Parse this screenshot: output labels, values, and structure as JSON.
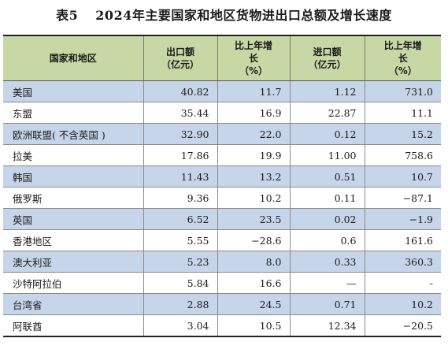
{
  "title": {
    "table_number": "表5",
    "text": "2024年主要国家和地区货物进出口总额及增长速度"
  },
  "table": {
    "headers": {
      "region": "国家和地区",
      "export_line1": "出口额",
      "export_line2": "（亿元）",
      "export_growth_line1": "比上年增",
      "export_growth_line2": "长",
      "export_growth_line3": "（%）",
      "import_line1": "进口额",
      "import_line2": "（亿元）",
      "import_growth_line1": "比上年增",
      "import_growth_line2": "长",
      "import_growth_line3": "（%）"
    },
    "rows": [
      {
        "region": "美国",
        "export": "40.82",
        "export_growth": "11.7",
        "import": "1.12",
        "import_growth": "731.0"
      },
      {
        "region": "东盟",
        "export": "35.44",
        "export_growth": "16.9",
        "import": "22.87",
        "import_growth": "11.1"
      },
      {
        "region": "欧洲联盟( 不含英国 )",
        "export": "32.90",
        "export_growth": "22.0",
        "import": "0.12",
        "import_growth": "15.2"
      },
      {
        "region": "拉美",
        "export": "17.86",
        "export_growth": "19.9",
        "import": "11.00",
        "import_growth": "758.6"
      },
      {
        "region": "韩国",
        "export": "11.43",
        "export_growth": "13.2",
        "import": "0.51",
        "import_growth": "10.7"
      },
      {
        "region": "俄罗斯",
        "export": "9.36",
        "export_growth": "10.2",
        "import": "0.11",
        "import_growth": "−87.1"
      },
      {
        "region": "英国",
        "export": "6.52",
        "export_growth": "23.5",
        "import": "0.02",
        "import_growth": "−1.9"
      },
      {
        "region": "香港地区",
        "export": "5.55",
        "export_growth": "−28.6",
        "import": "0.6",
        "import_growth": "161.6"
      },
      {
        "region": "澳大利亚",
        "export": "5.23",
        "export_growth": "8.0",
        "import": "0.33",
        "import_growth": "360.3"
      },
      {
        "region": "沙特阿拉伯",
        "export": "5.84",
        "export_growth": "16.6",
        "import": "—",
        "import_growth": "-"
      },
      {
        "region": "台湾省",
        "export": "2.88",
        "export_growth": "24.5",
        "import": "0.71",
        "import_growth": "10.2"
      },
      {
        "region": "阿联酋",
        "export": "3.04",
        "export_growth": "10.5",
        "import": "12.34",
        "import_growth": "−20.5"
      }
    ]
  },
  "colors": {
    "header_bg": "#c8d8a4",
    "shaded_row_bg": "#c6d5ea",
    "plain_row_bg": "#ffffff"
  }
}
